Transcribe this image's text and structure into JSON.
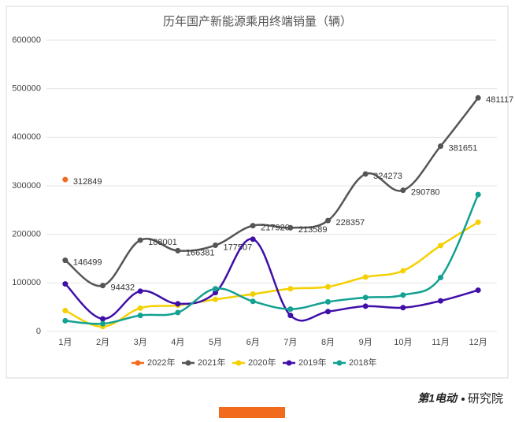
{
  "chart_data": {
    "type": "line",
    "title": "历年国产新能源乘用终端销量（辆）",
    "categories": [
      "1月",
      "2月",
      "3月",
      "4月",
      "5月",
      "6月",
      "7月",
      "8月",
      "9月",
      "10月",
      "11月",
      "12月"
    ],
    "series": [
      {
        "name": "2022年",
        "color": "#f26b1d",
        "values": [
          312849,
          null,
          null,
          null,
          null,
          null,
          null,
          null,
          null,
          null,
          null,
          null
        ],
        "data_labels": true
      },
      {
        "name": "2021年",
        "color": "#555555",
        "values": [
          146499,
          94432,
          188001,
          166381,
          177507,
          217920,
          213589,
          228357,
          324273,
          290780,
          381651,
          481117
        ],
        "data_labels": true
      },
      {
        "name": "2020年",
        "color": "#f5d000",
        "values": [
          43000,
          10000,
          48000,
          54000,
          66000,
          77000,
          88000,
          92000,
          112000,
          125000,
          177000,
          225000
        ]
      },
      {
        "name": "2019年",
        "color": "#3f0fa8",
        "values": [
          98000,
          26000,
          83000,
          57000,
          80000,
          190000,
          33000,
          41000,
          52000,
          49000,
          63000,
          85000
        ]
      },
      {
        "name": "2018年",
        "color": "#13a191",
        "values": [
          22000,
          16000,
          33000,
          39000,
          88000,
          62000,
          46000,
          61000,
          70000,
          75000,
          111000,
          282000
        ]
      }
    ],
    "ylim": [
      0,
      600000
    ],
    "yticks": [
      0,
      100000,
      200000,
      300000,
      400000,
      500000,
      600000
    ],
    "grid": true,
    "legend": "bottom"
  },
  "footer": {
    "brand": "第1电动",
    "suffix": "研究院"
  }
}
